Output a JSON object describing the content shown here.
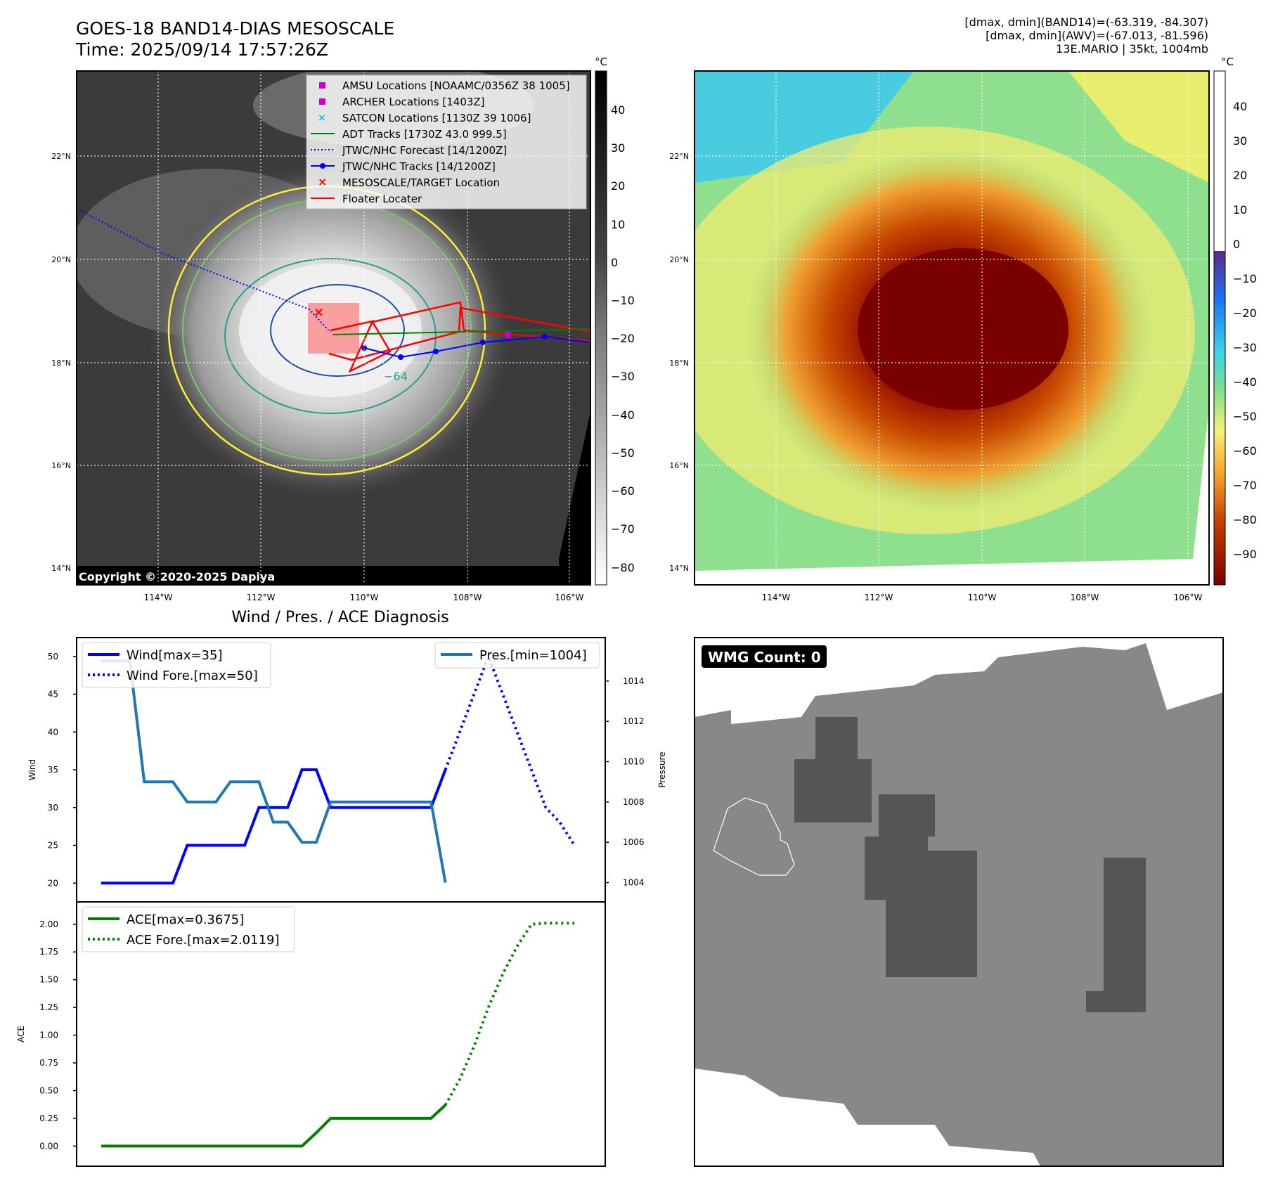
{
  "header": {
    "title": "GOES-18 BAND14-DIAS MESOSCALE",
    "time": "Time: 2025/09/14 17:57:26Z",
    "dmax_band14": "[dmax, dmin](BAND14)=(-63.319, -84.307)",
    "dmax_awv": "[dmax, dmin](AWV)=(-67.013, -81.596)",
    "storm": "13E.MARIO | 35kt, 1004mb"
  },
  "ir_panel": {
    "lat_ticks": [
      "22°N",
      "20°N",
      "18°N",
      "16°N",
      "14°N"
    ],
    "lon_ticks": [
      "114°W",
      "112°W",
      "110°W",
      "108°W",
      "106°W"
    ],
    "colorbar_unit": "°C",
    "colorbar_ticks": [
      "40",
      "30",
      "20",
      "10",
      "0",
      "−10",
      "−20",
      "−30",
      "−40",
      "−50",
      "−60",
      "−70",
      "−80"
    ],
    "copyright": "Copyright © 2020-2025 Dapiya",
    "contour_label": "−64",
    "legend": [
      "AMSU Locations [NOAAMC/0356Z 38 1005]",
      "ARCHER Locations [1403Z]",
      "SATCON Locations [1130Z 39 1006]",
      "ADT Tracks [1730Z 43.0 999.5]",
      "JTWC/NHC Forecast [14/1200Z]",
      "JTWC/NHC Tracks [14/1200Z]",
      "MESOSCALE/TARGET Location",
      "Floater Locater"
    ],
    "colors": {
      "amsu": "#cc00cc",
      "archer": "#cc00cc",
      "satcon": "#17becf",
      "adt": "#008000",
      "jtwc": "#0000ff",
      "target": "#ff0000",
      "floater": "#ff0000"
    }
  },
  "awv_panel": {
    "lat_ticks": [
      "22°N",
      "20°N",
      "18°N",
      "16°N",
      "14°N"
    ],
    "lon_ticks": [
      "114°W",
      "112°W",
      "110°W",
      "108°W",
      "106°W"
    ],
    "colorbar_unit": "°C",
    "colorbar_ticks": [
      "40",
      "30",
      "20",
      "10",
      "0",
      "−10",
      "−20",
      "−30",
      "−40",
      "−50",
      "−60",
      "−70",
      "−80",
      "−90"
    ]
  },
  "chart_data": [
    {
      "type": "line",
      "title": "Wind / Pres. / ACE Diagnosis",
      "ylabel": "Wind",
      "ylim": [
        19,
        51
      ],
      "y_ticks": [
        "50",
        "45",
        "40",
        "35",
        "30",
        "25",
        "20"
      ],
      "series": [
        {
          "name": "Wind[max=35]",
          "color": "#0000ff",
          "style": "solid",
          "values": [
            20,
            20,
            20,
            20,
            20,
            20,
            25,
            25,
            25,
            25,
            25,
            30,
            30,
            30,
            35,
            35,
            30,
            30,
            30,
            30,
            30,
            30,
            30,
            30,
            35
          ]
        },
        {
          "name": "Wind Fore.[max=50]",
          "color": "#0000ff",
          "style": "dotted",
          "values": [
            35,
            40,
            45,
            50,
            45,
            40,
            35,
            30,
            28,
            25
          ]
        }
      ],
      "y2label": "Pressure",
      "y2lim": [
        1003.6,
        1015.6
      ],
      "y2_ticks": [
        "1014",
        "1012",
        "1010",
        "1008",
        "1006",
        "1004"
      ],
      "series2": [
        {
          "name": "Pres.[min=1004]",
          "color": "#1f77b4",
          "style": "solid",
          "values": [
            1015,
            1015,
            1015,
            1009,
            1009,
            1009,
            1008,
            1008,
            1008,
            1009,
            1009,
            1009,
            1007,
            1007,
            1006,
            1006,
            1008,
            1008,
            1008,
            1008,
            1008,
            1008,
            1008,
            1008,
            1004
          ]
        }
      ]
    },
    {
      "type": "line",
      "ylabel": "ACE",
      "ylim": [
        -0.08,
        2.1
      ],
      "y_ticks": [
        "2.00",
        "1.75",
        "1.50",
        "1.25",
        "1.00",
        "0.75",
        "0.50",
        "0.25",
        "0.00"
      ],
      "series": [
        {
          "name": "ACE[max=0.3675]",
          "color": "#008000",
          "style": "solid",
          "values": [
            0,
            0,
            0,
            0,
            0,
            0,
            0,
            0,
            0,
            0,
            0,
            0,
            0,
            0,
            0,
            0.12,
            0.25,
            0.25,
            0.25,
            0.25,
            0.25,
            0.25,
            0.25,
            0.25,
            0.37
          ]
        },
        {
          "name": "ACE Fore.[max=2.0119]",
          "color": "#008000",
          "style": "dotted",
          "values": [
            0.37,
            0.6,
            0.9,
            1.25,
            1.55,
            1.8,
            2.0,
            2.01,
            2.01,
            2.01
          ]
        }
      ]
    }
  ],
  "wmg_panel": {
    "label": "WMG Count: 0"
  }
}
